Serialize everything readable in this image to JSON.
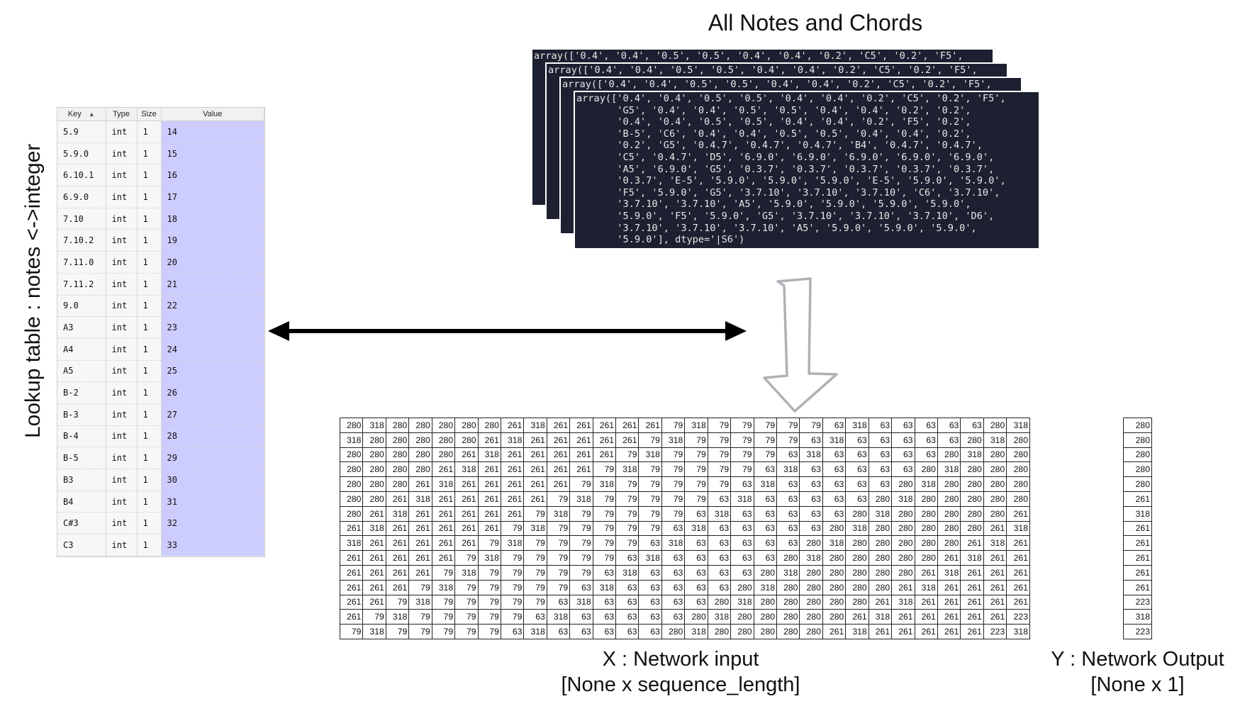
{
  "side_label": "Lookup table : notes <->integer",
  "lookup_table": {
    "headers": {
      "key": "Key",
      "type": "Type",
      "size": "Size",
      "value": "Value"
    },
    "rows": [
      {
        "key": "5.9",
        "type": "int",
        "size": "1",
        "value": "14"
      },
      {
        "key": "5.9.0",
        "type": "int",
        "size": "1",
        "value": "15"
      },
      {
        "key": "6.10.1",
        "type": "int",
        "size": "1",
        "value": "16"
      },
      {
        "key": "6.9.0",
        "type": "int",
        "size": "1",
        "value": "17"
      },
      {
        "key": "7.10",
        "type": "int",
        "size": "1",
        "value": "18"
      },
      {
        "key": "7.10.2",
        "type": "int",
        "size": "1",
        "value": "19"
      },
      {
        "key": "7.11.0",
        "type": "int",
        "size": "1",
        "value": "20"
      },
      {
        "key": "7.11.2",
        "type": "int",
        "size": "1",
        "value": "21"
      },
      {
        "key": "9.0",
        "type": "int",
        "size": "1",
        "value": "22"
      },
      {
        "key": "A3",
        "type": "int",
        "size": "1",
        "value": "23"
      },
      {
        "key": "A4",
        "type": "int",
        "size": "1",
        "value": "24"
      },
      {
        "key": "A5",
        "type": "int",
        "size": "1",
        "value": "25"
      },
      {
        "key": "B-2",
        "type": "int",
        "size": "1",
        "value": "26"
      },
      {
        "key": "B-3",
        "type": "int",
        "size": "1",
        "value": "27"
      },
      {
        "key": "B-4",
        "type": "int",
        "size": "1",
        "value": "28"
      },
      {
        "key": "B-5",
        "type": "int",
        "size": "1",
        "value": "29"
      },
      {
        "key": "B3",
        "type": "int",
        "size": "1",
        "value": "30"
      },
      {
        "key": "B4",
        "type": "int",
        "size": "1",
        "value": "31"
      },
      {
        "key": "C#3",
        "type": "int",
        "size": "1",
        "value": "32"
      },
      {
        "key": "C3",
        "type": "int",
        "size": "1",
        "value": "33"
      }
    ]
  },
  "notes_title": "All Notes and Chords",
  "code_stack": {
    "back_line": "array(['0.4', '0.4', '0.5', '0.5', '0.4', '0.4', '0.2', 'C5', '0.2', 'F5',",
    "front_text": "array(['0.4', '0.4', '0.5', '0.5', '0.4', '0.4', '0.2', 'C5', '0.2', 'F5',\n       'G5', '0.4', '0.4', '0.5', '0.5', '0.4', '0.4', '0.2', '0.2',\n       '0.4', '0.4', '0.5', '0.5', '0.4', '0.4', '0.2', 'F5', '0.2',\n       'B-5', 'C6', '0.4', '0.4', '0.5', '0.5', '0.4', '0.4', '0.2',\n       '0.2', 'G5', '0.4.7', '0.4.7', '0.4.7', 'B4', '0.4.7', '0.4.7',\n       'C5', '0.4.7', 'D5', '6.9.0', '6.9.0', '6.9.0', '6.9.0', '6.9.0',\n       'A5', '6.9.0', 'G5', '0.3.7', '0.3.7', '0.3.7', '0.3.7', '0.3.7',\n       '0.3.7', 'E-5', '5.9.0', '5.9.0', '5.9.0', 'E-5', '5.9.0', '5.9.0',\n       'F5', '5.9.0', 'G5', '3.7.10', '3.7.10', '3.7.10', 'C6', '3.7.10',\n       '3.7.10', '3.7.10', 'A5', '5.9.0', '5.9.0', '5.9.0', '5.9.0',\n       '5.9.0', 'F5', '5.9.0', 'G5', '3.7.10', '3.7.10', '3.7.10', 'D6',\n       '3.7.10', '3.7.10', '3.7.10', 'A5', '5.9.0', '5.9.0', '5.9.0',\n       '5.9.0'], dtype='|S6')"
  },
  "network_input": {
    "caption_line1": "X : Network input",
    "caption_line2": "[None x sequence_length]",
    "rows": [
      [
        280,
        318,
        280,
        280,
        280,
        280,
        280,
        261,
        318,
        261,
        261,
        261,
        261,
        261,
        79,
        318,
        79,
        79,
        79,
        79,
        79,
        63,
        318,
        63,
        63,
        63,
        63,
        63,
        280,
        318
      ],
      [
        318,
        280,
        280,
        280,
        280,
        280,
        261,
        318,
        261,
        261,
        261,
        261,
        261,
        79,
        318,
        79,
        79,
        79,
        79,
        79,
        63,
        318,
        63,
        63,
        63,
        63,
        63,
        280,
        318,
        280
      ],
      [
        280,
        280,
        280,
        280,
        280,
        261,
        318,
        261,
        261,
        261,
        261,
        261,
        79,
        318,
        79,
        79,
        79,
        79,
        79,
        63,
        318,
        63,
        63,
        63,
        63,
        63,
        280,
        318,
        280,
        280
      ],
      [
        280,
        280,
        280,
        280,
        261,
        318,
        261,
        261,
        261,
        261,
        261,
        79,
        318,
        79,
        79,
        79,
        79,
        79,
        63,
        318,
        63,
        63,
        63,
        63,
        63,
        280,
        318,
        280,
        280,
        280
      ],
      [
        280,
        280,
        280,
        261,
        318,
        261,
        261,
        261,
        261,
        261,
        79,
        318,
        79,
        79,
        79,
        79,
        79,
        63,
        318,
        63,
        63,
        63,
        63,
        63,
        280,
        318,
        280,
        280,
        280,
        280
      ],
      [
        280,
        280,
        261,
        318,
        261,
        261,
        261,
        261,
        261,
        79,
        318,
        79,
        79,
        79,
        79,
        79,
        63,
        318,
        63,
        63,
        63,
        63,
        63,
        280,
        318,
        280,
        280,
        280,
        280,
        280
      ],
      [
        280,
        261,
        318,
        261,
        261,
        261,
        261,
        261,
        79,
        318,
        79,
        79,
        79,
        79,
        79,
        63,
        318,
        63,
        63,
        63,
        63,
        63,
        280,
        318,
        280,
        280,
        280,
        280,
        280,
        261
      ],
      [
        261,
        318,
        261,
        261,
        261,
        261,
        261,
        79,
        318,
        79,
        79,
        79,
        79,
        79,
        63,
        318,
        63,
        63,
        63,
        63,
        63,
        280,
        318,
        280,
        280,
        280,
        280,
        280,
        261,
        318
      ],
      [
        318,
        261,
        261,
        261,
        261,
        261,
        79,
        318,
        79,
        79,
        79,
        79,
        79,
        63,
        318,
        63,
        63,
        63,
        63,
        63,
        280,
        318,
        280,
        280,
        280,
        280,
        280,
        261,
        318,
        261
      ],
      [
        261,
        261,
        261,
        261,
        261,
        79,
        318,
        79,
        79,
        79,
        79,
        79,
        63,
        318,
        63,
        63,
        63,
        63,
        63,
        280,
        318,
        280,
        280,
        280,
        280,
        280,
        261,
        318,
        261,
        261
      ],
      [
        261,
        261,
        261,
        261,
        79,
        318,
        79,
        79,
        79,
        79,
        79,
        63,
        318,
        63,
        63,
        63,
        63,
        63,
        280,
        318,
        280,
        280,
        280,
        280,
        280,
        261,
        318,
        261,
        261,
        261
      ],
      [
        261,
        261,
        261,
        79,
        318,
        79,
        79,
        79,
        79,
        79,
        63,
        318,
        63,
        63,
        63,
        63,
        63,
        280,
        318,
        280,
        280,
        280,
        280,
        280,
        261,
        318,
        261,
        261,
        261,
        261
      ],
      [
        261,
        261,
        79,
        318,
        79,
        79,
        79,
        79,
        79,
        63,
        318,
        63,
        63,
        63,
        63,
        63,
        280,
        318,
        280,
        280,
        280,
        280,
        280,
        261,
        318,
        261,
        261,
        261,
        261,
        261
      ],
      [
        261,
        79,
        318,
        79,
        79,
        79,
        79,
        79,
        63,
        318,
        63,
        63,
        63,
        63,
        63,
        280,
        318,
        280,
        280,
        280,
        280,
        280,
        261,
        318,
        261,
        261,
        261,
        261,
        261,
        223
      ],
      [
        79,
        318,
        79,
        79,
        79,
        79,
        79,
        63,
        318,
        63,
        63,
        63,
        63,
        63,
        280,
        318,
        280,
        280,
        280,
        280,
        280,
        261,
        318,
        261,
        261,
        261,
        261,
        261,
        223,
        318
      ]
    ]
  },
  "network_output": {
    "caption_line1": "Y : Network Output",
    "caption_line2": "[None x 1]",
    "values": [
      280,
      280,
      280,
      280,
      280,
      261,
      318,
      261,
      261,
      261,
      261,
      261,
      223,
      318,
      223
    ]
  },
  "icons": {
    "bidirectional_arrow": "double-arrow-icon",
    "down_arrow": "down-arrow-icon"
  },
  "colors": {
    "value_column": "#ccccff",
    "code_background": "#1c2030",
    "down_arrow_stroke": "#b0b0b6"
  }
}
